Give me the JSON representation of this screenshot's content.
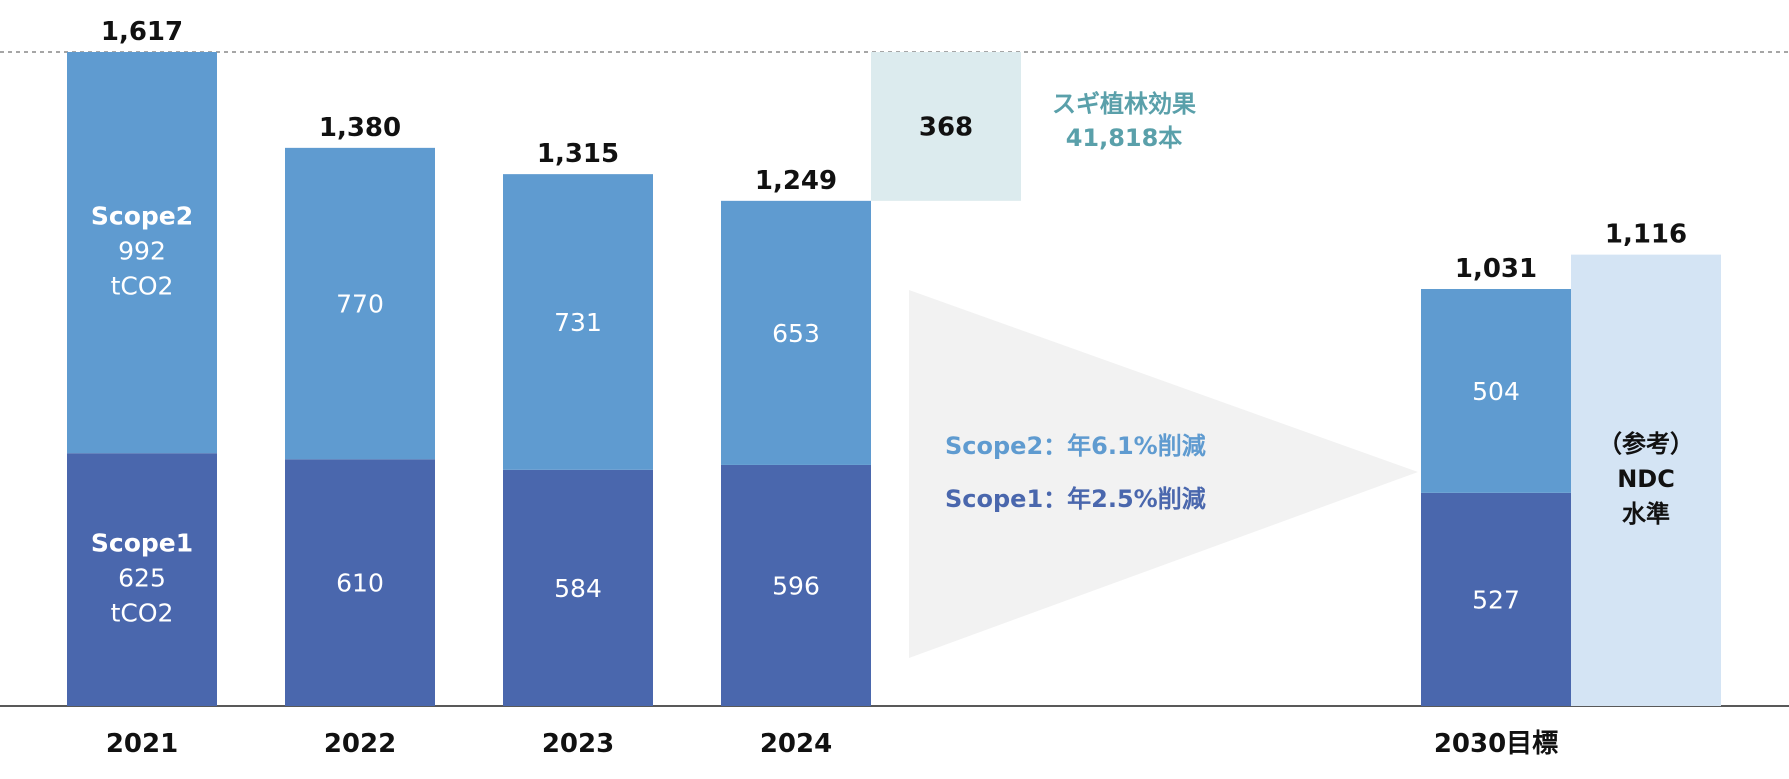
{
  "chart_data": {
    "type": "bar",
    "stacked": true,
    "categories": [
      "2021",
      "2022",
      "2023",
      "2024",
      "2030目標"
    ],
    "series": [
      {
        "name": "Scope1",
        "values": [
          625,
          610,
          584,
          596,
          527
        ]
      },
      {
        "name": "Scope2",
        "values": [
          992,
          770,
          731,
          653,
          504
        ]
      }
    ],
    "totals": [
      "1,617",
      "1,380",
      "1,315",
      "1,249",
      "1,031"
    ],
    "ylim": [
      0,
      1617
    ],
    "first_bar_labels": {
      "scope2_name": "Scope2",
      "scope1_name": "Scope1",
      "unit": "tCO2"
    },
    "offset": {
      "value": 368,
      "label": "368",
      "line1": "スギ植林効果",
      "line2": "41,818本"
    },
    "reference": {
      "value": 1116,
      "total_label": "1,116",
      "line1": "（参考）",
      "line2": "NDC",
      "line3": "水準"
    },
    "reduction_notes": {
      "scope2": "Scope2：年6.1%削減",
      "scope1": "Scope1：年2.5%削減"
    },
    "colors": {
      "scope1": "#4a67ad",
      "scope2": "#5f9bd0",
      "offset_box": "#dcebee",
      "offset_text": "#5aa0aa",
      "reference": "#d4e4f4",
      "arrow": "#f2f2f2",
      "scope2_text": "#5f9bd0",
      "scope1_text": "#4a67ad"
    }
  }
}
